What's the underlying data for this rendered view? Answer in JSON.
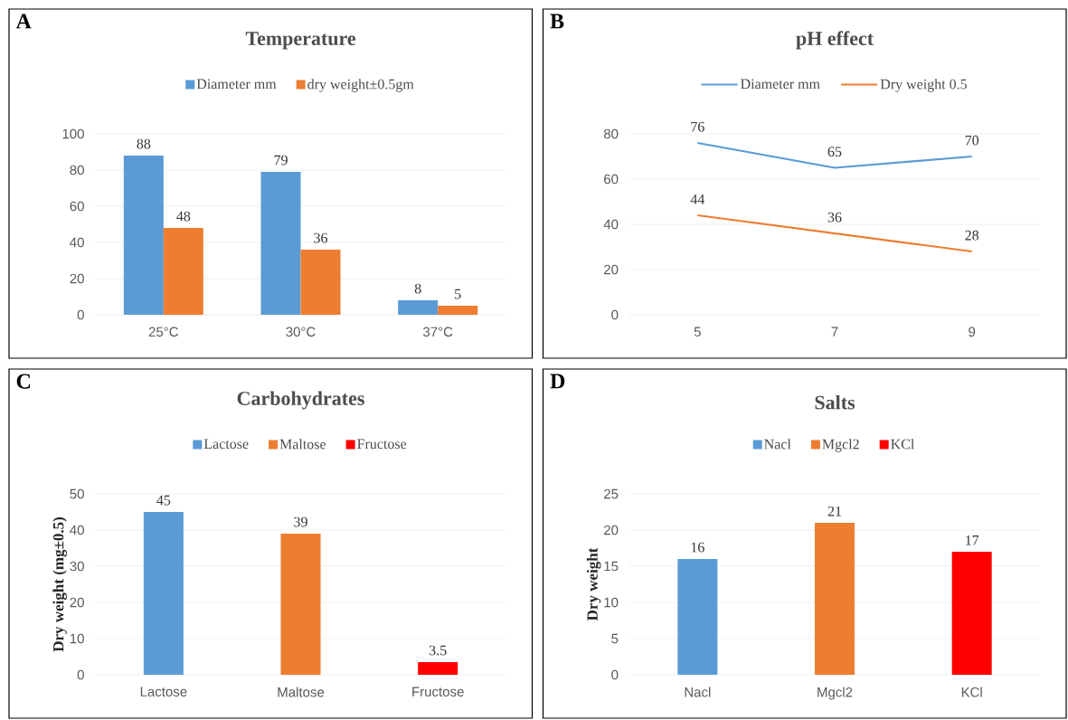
{
  "chart_data": [
    {
      "type": "bar",
      "title": "Temperature",
      "annotations": [
        "A"
      ],
      "categories": [
        "25°C",
        "30°C",
        "37°C"
      ],
      "series": [
        {
          "name": "Diameter mm",
          "color": "#5b9bd5",
          "values": [
            88,
            79,
            8
          ]
        },
        {
          "name": "dry weight±0.5gm",
          "color": "#ed7d31",
          "values": [
            48,
            36,
            5
          ]
        }
      ],
      "ylim": [
        0,
        100
      ],
      "yticks": [
        0,
        20,
        40,
        60,
        80,
        100
      ],
      "grid": "y",
      "legend": "top",
      "data_labels": true
    },
    {
      "type": "line",
      "title": "pH effect",
      "annotations": [
        "B"
      ],
      "categories": [
        "5",
        "7",
        "9"
      ],
      "series": [
        {
          "name": "Diameter mm",
          "color": "#5b9bd5",
          "values": [
            76,
            65,
            70
          ]
        },
        {
          "name": "Dry weight 0.5",
          "color": "#ed7d31",
          "values": [
            44,
            36,
            28
          ]
        }
      ],
      "ylim": [
        0,
        80
      ],
      "yticks": [
        0,
        20,
        40,
        60,
        80
      ],
      "grid": "y",
      "legend": "top",
      "data_labels": true,
      "marker": "none"
    },
    {
      "type": "bar",
      "title": "Carbohydrates",
      "annotations": [
        "C"
      ],
      "ylabel": "Dry weight (mg±0.5)",
      "categories": [
        "Lactose",
        "Maltose",
        "Fructose"
      ],
      "series": [
        {
          "name": "Lactose",
          "color": "#5b9bd5",
          "values": [
            45,
            null,
            null
          ]
        },
        {
          "name": "Maltose",
          "color": "#ed7d31",
          "values": [
            null,
            39,
            null
          ]
        },
        {
          "name": "Fructose",
          "color": "#ff0000",
          "values": [
            null,
            null,
            3.5
          ]
        }
      ],
      "ylim": [
        0,
        50
      ],
      "yticks": [
        0,
        10,
        20,
        30,
        40,
        50
      ],
      "grid": "y",
      "legend": "top",
      "data_labels": true
    },
    {
      "type": "bar",
      "title": "Salts",
      "annotations": [
        "D"
      ],
      "ylabel": "Dry weight",
      "categories": [
        "Nacl",
        "Mgcl2",
        "KCl"
      ],
      "series": [
        {
          "name": "Nacl",
          "color": "#5b9bd5",
          "values": [
            16,
            null,
            null
          ]
        },
        {
          "name": "Mgcl2",
          "color": "#ed7d31",
          "values": [
            null,
            21,
            null
          ]
        },
        {
          "name": "KCl",
          "color": "#ff0000",
          "values": [
            null,
            null,
            17
          ]
        }
      ],
      "ylim": [
        0,
        25
      ],
      "yticks": [
        0,
        5,
        10,
        15,
        20,
        25
      ],
      "grid": "y",
      "legend": "top",
      "data_labels": true
    }
  ]
}
